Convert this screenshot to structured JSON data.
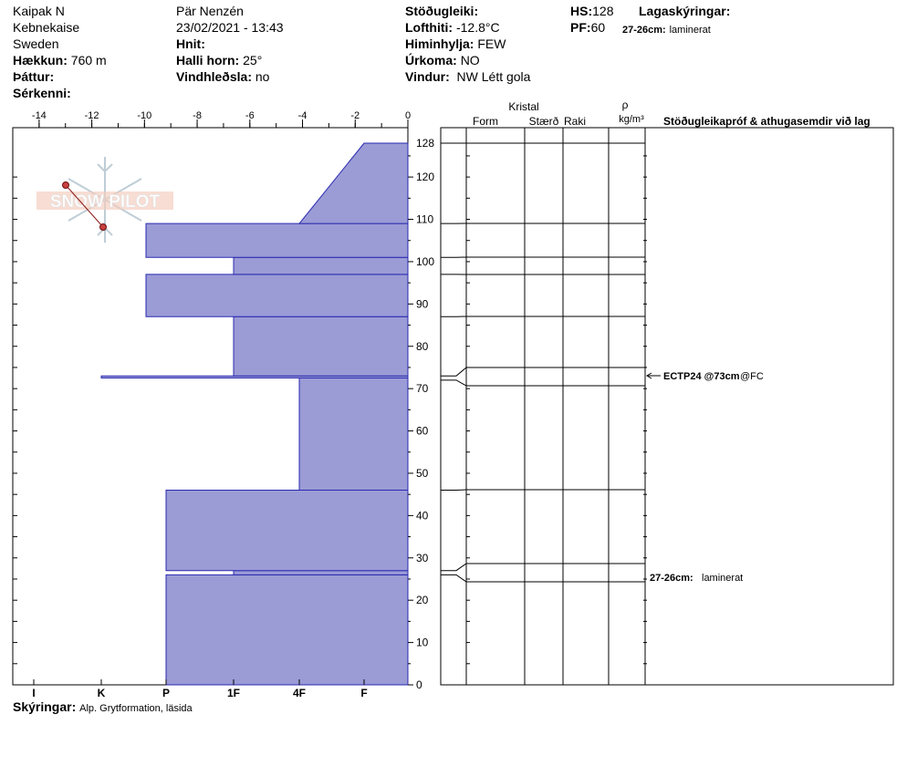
{
  "header": {
    "location": "Kaipak N",
    "region": "Kebnekaise",
    "country": "Sweden",
    "elevation_label": "Hækkun:",
    "elevation_value": "760 m",
    "aspect_label": "Þáttur:",
    "specifics_label": "Sérkenni:",
    "observer": "Pär Nenzén",
    "datetime": "23/02/2021 - 13:43",
    "coords_label": "Hnit:",
    "slope_label": "Halli horn:",
    "slope_value": "25°",
    "wind_loading_label": "Vindhleðsla:",
    "wind_loading_value": "no",
    "stability_label": "Stöðugleiki:",
    "air_temp_label": "Lofthiti:",
    "air_temp_value": "-12.8°C",
    "sky_label": "Himinhylja:",
    "sky_value": "FEW",
    "precip_label": "Úrkoma:",
    "precip_value": "NO",
    "wind_label": "Vindur:",
    "wind_value": "NW Létt gola",
    "hs_label": "HS:",
    "hs_value": "128",
    "pf_label": "PF:",
    "pf_value": "60",
    "layer_notes_label": "Lagaskýringar:",
    "layer_note_range": "27-26cm:",
    "layer_note_text": "laminerat"
  },
  "footer": {
    "notes_label": "Skýringar:",
    "notes_value": "Alp. Grytformation, läsida"
  },
  "logo_text": "SNOW PILOT",
  "columns": {
    "crystal": "Kristal",
    "form": "Form",
    "size": "Stærð",
    "moisture": "Raki",
    "rho": "ρ",
    "density_unit": "kg/m³",
    "tests": "Stöðugleikapróf & athugasemdir við lag"
  },
  "annotations": {
    "test_name": "ECTP24 @73cm",
    "test_result": "@FC",
    "comment_range": "27-26cm:",
    "comment_text": "laminerat"
  },
  "chart_data": {
    "type": "bar",
    "title": "",
    "temperature_axis": {
      "ticks": [
        -14,
        -12,
        -10,
        -8,
        -6,
        -4,
        -2,
        0
      ],
      "range": [
        -15,
        0
      ]
    },
    "height_axis": {
      "ticks": [
        0,
        10,
        20,
        30,
        40,
        50,
        60,
        70,
        80,
        90,
        100,
        110,
        120,
        128
      ],
      "range": [
        0,
        128
      ],
      "unit": "cm"
    },
    "hardness_axis": {
      "labels": [
        "I",
        "K",
        "P",
        "1F",
        "4F",
        "F"
      ]
    },
    "hardness_profile_colors": {
      "fill": "#9b9bd6",
      "stroke": "#2a2ab0"
    },
    "hardness_layers": [
      {
        "bottom": 0,
        "top": 26,
        "hardness": "P"
      },
      {
        "bottom": 26,
        "top": 27,
        "hardness": "1F"
      },
      {
        "bottom": 27,
        "top": 46,
        "hardness": "P"
      },
      {
        "bottom": 46,
        "top": 72.5,
        "hardness": "4F"
      },
      {
        "bottom": 72.5,
        "top": 73,
        "hardness": "K"
      },
      {
        "bottom": 73,
        "top": 87,
        "hardness": "1F"
      },
      {
        "bottom": 87,
        "top": 97,
        "hardness": "P+"
      },
      {
        "bottom": 97,
        "top": 101,
        "hardness": "1F"
      },
      {
        "bottom": 101,
        "top": 109,
        "hardness": "P+"
      },
      {
        "bottom": 109,
        "top": 128,
        "hardness_bottom": "4F",
        "hardness_top": "F+"
      }
    ],
    "layer_boundaries_cm": [
      128,
      109,
      101,
      97,
      87,
      73,
      72,
      46,
      27,
      26
    ]
  }
}
